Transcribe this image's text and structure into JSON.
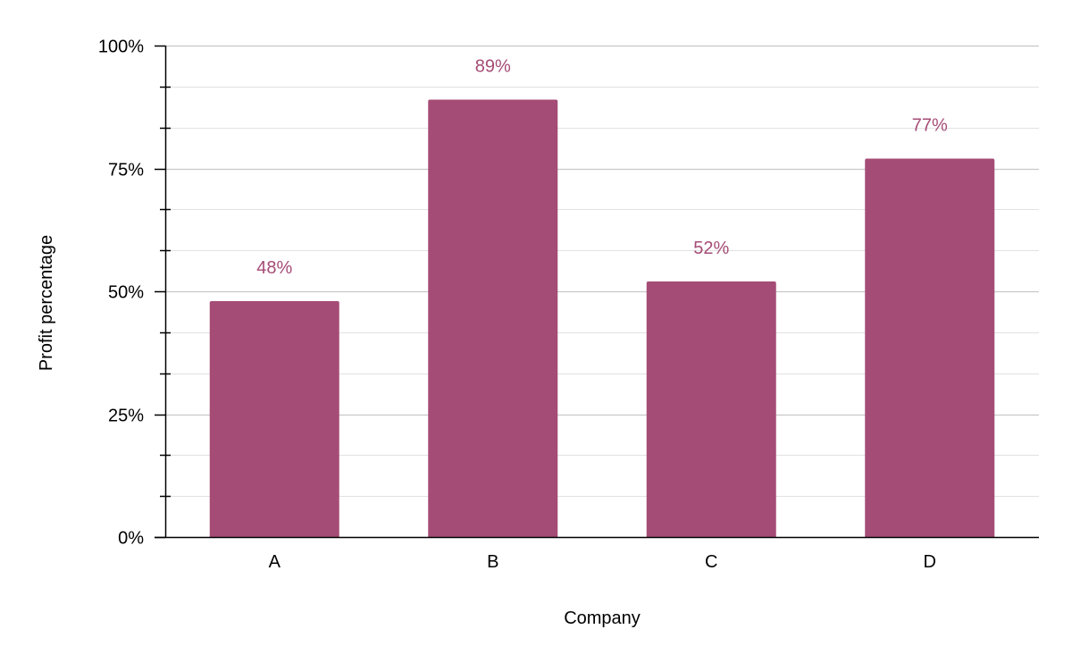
{
  "chart_data": {
    "type": "bar",
    "title": "",
    "xlabel": "Company",
    "ylabel": "Profit percentage",
    "categories": [
      "A",
      "B",
      "C",
      "D"
    ],
    "series": [
      {
        "values": [
          48,
          89,
          52,
          77
        ]
      }
    ],
    "data_labels": [
      "48%",
      "89%",
      "52%",
      "77%"
    ],
    "ylim": [
      0,
      100
    ],
    "y_ticks": [
      0,
      25,
      50,
      75,
      100
    ],
    "y_tick_labels": [
      "0%",
      "25%",
      "50%",
      "75%",
      "100%"
    ],
    "y_minor_step": 8.333,
    "grid": true,
    "legend": "none",
    "colors": {
      "bar": "#a54c76",
      "data_label": "#a54c76",
      "major_grid": "#c8c8c8",
      "minor_grid": "#e2e2e2",
      "axis": "#000000"
    }
  }
}
